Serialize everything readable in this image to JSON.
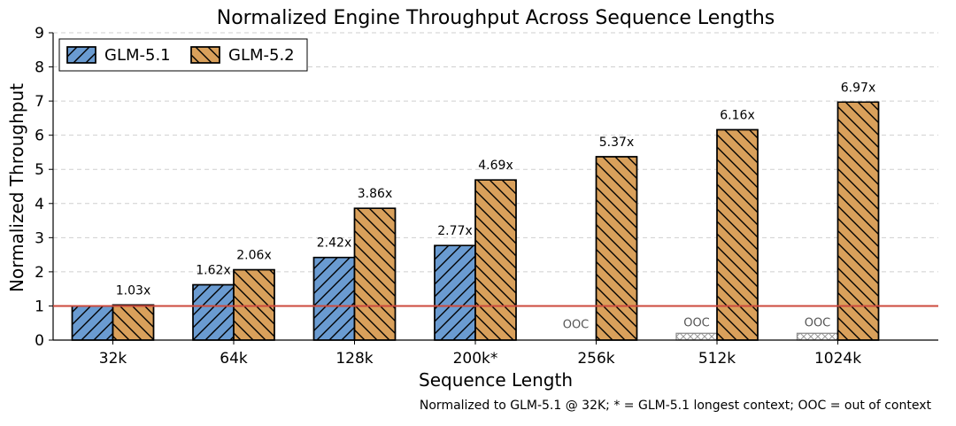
{
  "chart_data": {
    "type": "bar",
    "title": "Normalized Engine Throughput Across Sequence Lengths",
    "xlabel": "Sequence Length",
    "ylabel": "Normalized Throughput",
    "ylim": [
      0,
      9
    ],
    "yticks": [
      0,
      1,
      2,
      3,
      4,
      5,
      6,
      7,
      8,
      9
    ],
    "grid": true,
    "legend_position": "top-left",
    "categories": [
      "32k",
      "64k",
      "128k",
      "200k*",
      "256k",
      "512k",
      "1024k"
    ],
    "series": [
      {
        "name": "GLM-5.1",
        "color": "#6a9bd1",
        "hatch": "forward-diagonal",
        "values": [
          1.0,
          1.62,
          2.42,
          2.77,
          null,
          null,
          null
        ],
        "labels": [
          "",
          "1.62x",
          "2.42x",
          "2.77x",
          "",
          "",
          ""
        ],
        "ooc": [
          false,
          false,
          false,
          false,
          false,
          true,
          true
        ],
        "ooc_label": "OOC"
      },
      {
        "name": "GLM-5.2",
        "color": "#d9a05b",
        "hatch": "backward-diagonal",
        "values": [
          1.03,
          2.06,
          3.86,
          4.69,
          5.37,
          6.16,
          6.97
        ],
        "labels": [
          "1.03x",
          "2.06x",
          "3.86x",
          "4.69x",
          "5.37x",
          "6.16x",
          "6.97x"
        ]
      }
    ],
    "ooc_placeholder_value": 0.2,
    "ooc_label_at_256k": "OOC",
    "baseline": {
      "value": 1,
      "color": "#cc4a3c"
    },
    "footnote": "Normalized to GLM-5.1 @ 32K; * = GLM-5.1 longest context; OOC = out of context"
  }
}
